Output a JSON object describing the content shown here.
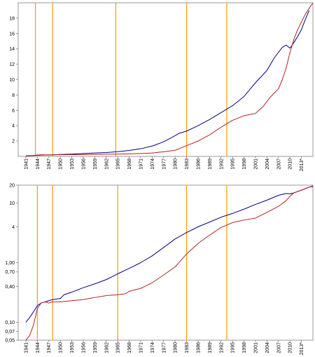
{
  "colors": {
    "series_blue": "#00008b",
    "series_red": "#b22222",
    "event_lines": "#ff9900",
    "axis": "#808080",
    "background": "#ffffff"
  },
  "chart_data": [
    {
      "type": "line",
      "scale": "linear",
      "ylim": [
        0,
        20
      ],
      "yticks": [
        2,
        4,
        6,
        8,
        10,
        12,
        14,
        16,
        18
      ],
      "ytick_labels": [
        "2",
        "4",
        "6",
        "8",
        "10",
        "12",
        "14",
        "16",
        "18"
      ],
      "xlim": [
        1939,
        2016
      ],
      "xtick_labels": [
        "1941",
        "1944",
        "1947",
        "1950",
        "1953",
        "1956",
        "1959",
        "1962",
        "1965",
        "1968",
        "1971",
        "1974",
        "1977",
        "1980",
        "1983",
        "1986",
        "1989",
        "1992",
        "1995",
        "1998",
        "2001",
        "2004",
        "2007",
        "2010",
        "2013*"
      ],
      "vertical_lines": [
        1943.5,
        1948,
        1964.5,
        1983,
        1993.5
      ],
      "grid": false,
      "legend": "none",
      "series": [
        {
          "color": "#00008b",
          "points": [
            [
              1941,
              0.08
            ],
            [
              1943,
              0.12
            ],
            [
              1945,
              0.17
            ],
            [
              1948,
              0.2
            ],
            [
              1950,
              0.25
            ],
            [
              1953,
              0.3
            ],
            [
              1956,
              0.38
            ],
            [
              1959,
              0.44
            ],
            [
              1962,
              0.5
            ],
            [
              1965,
              0.62
            ],
            [
              1968,
              0.78
            ],
            [
              1971,
              1.0
            ],
            [
              1974,
              1.35
            ],
            [
              1977,
              1.9
            ],
            [
              1980,
              2.7
            ],
            [
              1981,
              3.0
            ],
            [
              1983,
              3.3
            ],
            [
              1986,
              4.0
            ],
            [
              1989,
              4.8
            ],
            [
              1992,
              5.7
            ],
            [
              1995,
              6.6
            ],
            [
              1998,
              7.8
            ],
            [
              2001,
              9.6
            ],
            [
              2004,
              11.2
            ],
            [
              2006,
              12.9
            ],
            [
              2008,
              14.2
            ],
            [
              2009,
              14.5
            ],
            [
              2010,
              14.1
            ],
            [
              2011,
              14.8
            ],
            [
              2012,
              15.6
            ],
            [
              2013,
              16.5
            ],
            [
              2014,
              17.8
            ],
            [
              2015,
              19.0
            ]
          ]
        },
        {
          "color": "#b22222",
          "points": [
            [
              1941,
              0.05
            ],
            [
              1942,
              0.07
            ],
            [
              1943,
              0.12
            ],
            [
              1944,
              0.18
            ],
            [
              1945,
              0.22
            ],
            [
              1946,
              0.2
            ],
            [
              1948,
              0.21
            ],
            [
              1950,
              0.22
            ],
            [
              1953,
              0.23
            ],
            [
              1956,
              0.24
            ],
            [
              1959,
              0.26
            ],
            [
              1962,
              0.28
            ],
            [
              1965,
              0.3
            ],
            [
              1968,
              0.33
            ],
            [
              1971,
              0.38
            ],
            [
              1974,
              0.45
            ],
            [
              1977,
              0.6
            ],
            [
              1980,
              0.8
            ],
            [
              1981,
              1.0
            ],
            [
              1983,
              1.4
            ],
            [
              1986,
              2.0
            ],
            [
              1989,
              2.8
            ],
            [
              1992,
              3.8
            ],
            [
              1995,
              4.7
            ],
            [
              1998,
              5.3
            ],
            [
              2000,
              5.5
            ],
            [
              2001,
              5.6
            ],
            [
              2003,
              6.5
            ],
            [
              2005,
              7.8
            ],
            [
              2007,
              8.8
            ],
            [
              2008,
              10.0
            ],
            [
              2009,
              11.5
            ],
            [
              2010,
              13.5
            ],
            [
              2011,
              15.2
            ],
            [
              2012,
              16.5
            ],
            [
              2014,
              18.5
            ],
            [
              2016,
              20.0
            ]
          ]
        }
      ]
    },
    {
      "type": "line",
      "scale": "log",
      "ylim": [
        0.05,
        20
      ],
      "yticks": [
        0.05,
        0.07,
        0.1,
        0.4,
        0.7,
        1,
        4,
        10,
        20
      ],
      "ytick_labels": [
        "0,05",
        "0,07",
        "0,10",
        "0,40",
        "0,70",
        "1,00",
        "4",
        "10",
        "20"
      ],
      "xlim": [
        1939,
        2016
      ],
      "xtick_labels": [
        "1941",
        "1944",
        "1947",
        "1950",
        "1953",
        "1956",
        "1959",
        "1962",
        "1965",
        "1968",
        "1971",
        "1974",
        "1977",
        "1980",
        "1983",
        "1986",
        "1989",
        "1992",
        "1995",
        "1998",
        "2001",
        "2004",
        "2007",
        "2010",
        "2013*"
      ],
      "vertical_lines": [
        1944,
        1948,
        1965,
        1983,
        1993.5
      ],
      "grid": false,
      "legend": "none",
      "series": [
        {
          "color": "#00008b",
          "points": [
            [
              1941,
              0.1
            ],
            [
              1942,
              0.12
            ],
            [
              1943,
              0.15
            ],
            [
              1944,
              0.19
            ],
            [
              1945,
              0.21
            ],
            [
              1946,
              0.22
            ],
            [
              1948,
              0.24
            ],
            [
              1950,
              0.25
            ],
            [
              1951,
              0.29
            ],
            [
              1953,
              0.32
            ],
            [
              1956,
              0.38
            ],
            [
              1959,
              0.44
            ],
            [
              1962,
              0.52
            ],
            [
              1965,
              0.65
            ],
            [
              1968,
              0.8
            ],
            [
              1971,
              1.0
            ],
            [
              1974,
              1.3
            ],
            [
              1977,
              1.8
            ],
            [
              1980,
              2.5
            ],
            [
              1983,
              3.2
            ],
            [
              1986,
              4.0
            ],
            [
              1989,
              4.8
            ],
            [
              1992,
              5.8
            ],
            [
              1995,
              6.7
            ],
            [
              1998,
              7.9
            ],
            [
              2001,
              9.5
            ],
            [
              2004,
              11.2
            ],
            [
              2007,
              13.5
            ],
            [
              2009,
              14.5
            ],
            [
              2010,
              14.3
            ],
            [
              2011,
              14.8
            ],
            [
              2013,
              16.5
            ],
            [
              2015,
              18.5
            ],
            [
              2016,
              19.0
            ]
          ]
        },
        {
          "color": "#b22222",
          "points": [
            [
              1941,
              0.05
            ],
            [
              1942,
              0.06
            ],
            [
              1943,
              0.09
            ],
            [
              1944,
              0.17
            ],
            [
              1945,
              0.21
            ],
            [
              1946,
              0.22
            ],
            [
              1947,
              0.21
            ],
            [
              1948,
              0.22
            ],
            [
              1950,
              0.22
            ],
            [
              1953,
              0.23
            ],
            [
              1956,
              0.24
            ],
            [
              1959,
              0.26
            ],
            [
              1962,
              0.28
            ],
            [
              1965,
              0.29
            ],
            [
              1967,
              0.3
            ],
            [
              1968,
              0.33
            ],
            [
              1971,
              0.37
            ],
            [
              1974,
              0.46
            ],
            [
              1977,
              0.62
            ],
            [
              1980,
              0.85
            ],
            [
              1983,
              1.4
            ],
            [
              1986,
              2.1
            ],
            [
              1989,
              2.9
            ],
            [
              1992,
              3.9
            ],
            [
              1995,
              4.7
            ],
            [
              1998,
              5.2
            ],
            [
              2001,
              5.6
            ],
            [
              2004,
              7.0
            ],
            [
              2007,
              8.8
            ],
            [
              2009,
              11.0
            ],
            [
              2010,
              13.0
            ],
            [
              2011,
              14.8
            ],
            [
              2013,
              16.5
            ],
            [
              2016,
              19.5
            ]
          ]
        }
      ]
    }
  ]
}
